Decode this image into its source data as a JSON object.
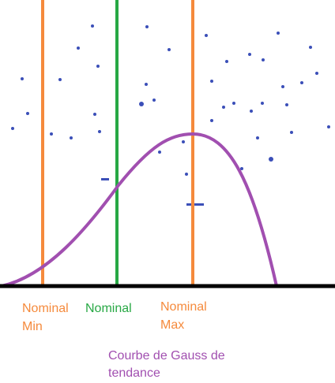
{
  "lines": [
    {
      "label": [
        "Nominal",
        "Min"
      ]
    },
    {
      "label": [
        "Nominal"
      ]
    },
    {
      "label": [
        "Nominal",
        "Max"
      ]
    }
  ],
  "curve_label": [
    "Courbe de Gauss de",
    "tendance"
  ]
}
